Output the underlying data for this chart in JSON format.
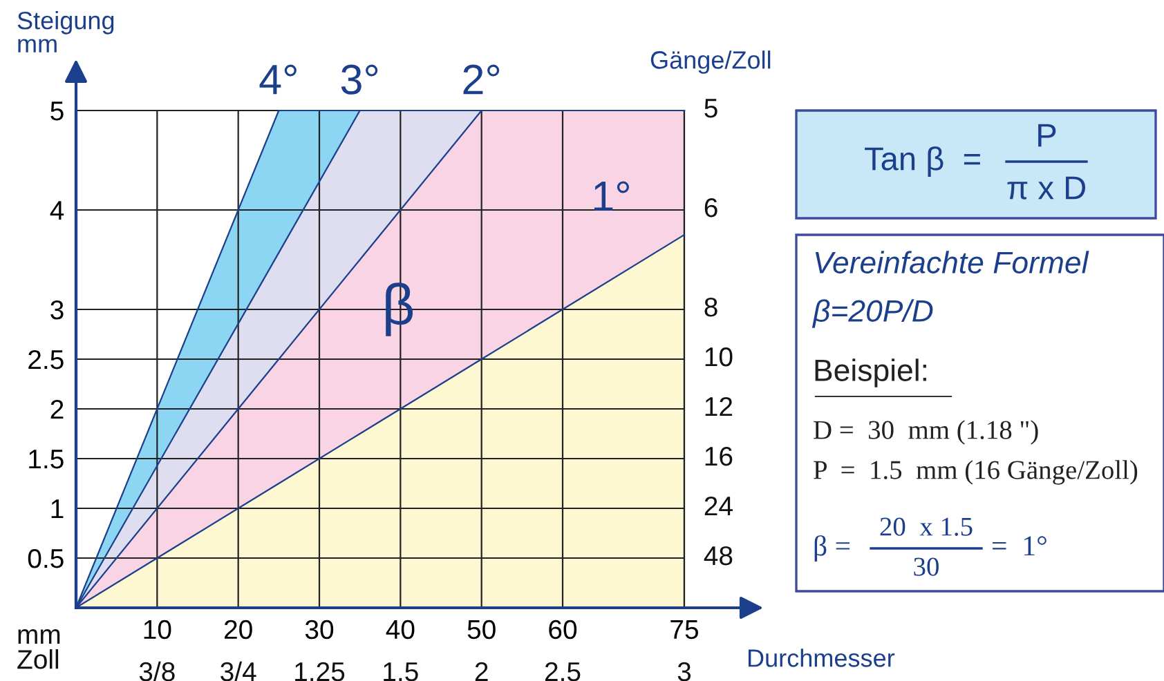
{
  "chart_data": {
    "type": "area",
    "stacked": true,
    "x": [
      0,
      25,
      35,
      50,
      75
    ],
    "series": [
      {
        "name": "1°",
        "color": "#fdf8d2",
        "values": [
          0,
          1.25,
          1.75,
          2.5,
          3.75
        ]
      },
      {
        "name": "2°",
        "color": "#f8d4e4",
        "values": [
          0,
          1.25,
          1.75,
          2.5,
          1.25
        ]
      },
      {
        "name": "3°",
        "color": "#dedef0",
        "values": [
          0,
          1.07,
          1.5,
          0,
          null
        ]
      },
      {
        "name": "4°",
        "color": "#8cd6f4",
        "values": [
          0,
          1.43,
          0,
          null,
          null
        ]
      }
    ],
    "xlim": [
      0,
      75
    ],
    "ylim": [
      0,
      5
    ],
    "xticks": [
      10,
      20,
      30,
      40,
      50,
      60,
      75
    ],
    "yticks": [
      0.5,
      1,
      1.5,
      2,
      2.5,
      3,
      4,
      5
    ],
    "ylabel": "Steigung\nmm",
    "y2label": "Gänge/Zoll",
    "xlabel": "Durchmesser",
    "grid": true,
    "annotations": [
      "β",
      "mm\nZoll",
      "Tan β  =",
      "P",
      "π x D",
      "Vereinfachte Formel",
      "β=20P/D",
      "Beispiel:",
      "D =  30  mm (1.18 \")",
      "P  =  1.5  mm (16 Gänge/Zoll)",
      "β =",
      "20  x 1.5",
      "30",
      "=  1°",
      "3/8",
      "3/4",
      "1.25",
      "1.5",
      "2",
      "2.5",
      "3",
      "48",
      "24",
      "16",
      "12",
      "10",
      "8",
      "6",
      "5"
    ]
  }
}
